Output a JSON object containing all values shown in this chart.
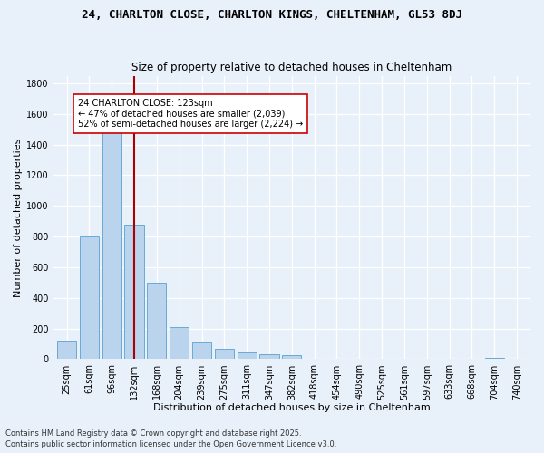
{
  "title1": "24, CHARLTON CLOSE, CHARLTON KINGS, CHELTENHAM, GL53 8DJ",
  "title2": "Size of property relative to detached houses in Cheltenham",
  "xlabel": "Distribution of detached houses by size in Cheltenham",
  "ylabel": "Number of detached properties",
  "bin_centers": [
    25,
    61,
    96,
    132,
    168,
    204,
    239,
    275,
    311,
    347,
    382,
    418,
    454,
    490,
    525,
    561,
    597,
    633,
    668,
    704,
    740
  ],
  "bin_labels": [
    "25sqm",
    "61sqm",
    "96sqm",
    "132sqm",
    "168sqm",
    "204sqm",
    "239sqm",
    "275sqm",
    "311sqm",
    "347sqm",
    "382sqm",
    "418sqm",
    "454sqm",
    "490sqm",
    "525sqm",
    "561sqm",
    "597sqm",
    "633sqm",
    "668sqm",
    "704sqm",
    "740sqm"
  ],
  "bar_heights": [
    120,
    800,
    1500,
    880,
    500,
    210,
    110,
    65,
    45,
    35,
    25,
    5,
    3,
    2,
    1,
    1,
    1,
    0,
    0,
    10,
    0
  ],
  "bar_color": "#bad4ee",
  "bar_edge_color": "#6aaad4",
  "background_color": "#e8f0fa",
  "grid_color": "#ffffff",
  "vline_x_idx": 3,
  "vline_color": "#aa0000",
  "annotation_text": "24 CHARLTON CLOSE: 123sqm\n← 47% of detached houses are smaller (2,039)\n52% of semi-detached houses are larger (2,224) →",
  "annotation_box_facecolor": "#ffffff",
  "annotation_box_edgecolor": "#cc0000",
  "ylim": [
    0,
    1850
  ],
  "yticks": [
    0,
    200,
    400,
    600,
    800,
    1000,
    1200,
    1400,
    1600,
    1800
  ],
  "footer1": "Contains HM Land Registry data © Crown copyright and database right 2025.",
  "footer2": "Contains public sector information licensed under the Open Government Licence v3.0.",
  "title1_fontsize": 9,
  "title2_fontsize": 8.5,
  "xlabel_fontsize": 8,
  "ylabel_fontsize": 8,
  "tick_fontsize": 7,
  "annotation_fontsize": 7,
  "footer_fontsize": 6
}
